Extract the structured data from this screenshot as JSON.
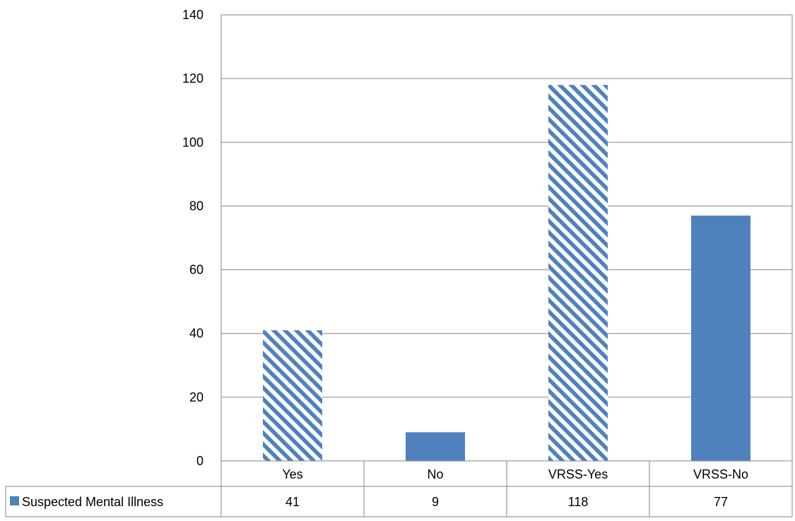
{
  "colors": {
    "bar": "#4f81bd",
    "hatch_background": "#ffffff",
    "grid": "#868686",
    "axis": "#868686",
    "text": "#000000"
  },
  "chart_data": {
    "type": "bar",
    "categories": [
      "Yes",
      "No",
      "VRSS-Yes",
      "VRSS-No"
    ],
    "series": [
      {
        "name": "Suspected Mental Illness",
        "values": [
          41,
          9,
          118,
          77
        ],
        "patterns": [
          "hatched",
          "solid",
          "hatched",
          "solid"
        ]
      }
    ],
    "ylim": [
      0,
      140
    ],
    "yticks": [
      "0",
      "20",
      "40",
      "60",
      "80",
      "100",
      "120",
      "140"
    ],
    "grid": true,
    "legend": "data-table",
    "data_table": {
      "legend_label": "Suspected Mental Illness",
      "cells": [
        "41",
        "9",
        "118",
        "77"
      ]
    }
  }
}
